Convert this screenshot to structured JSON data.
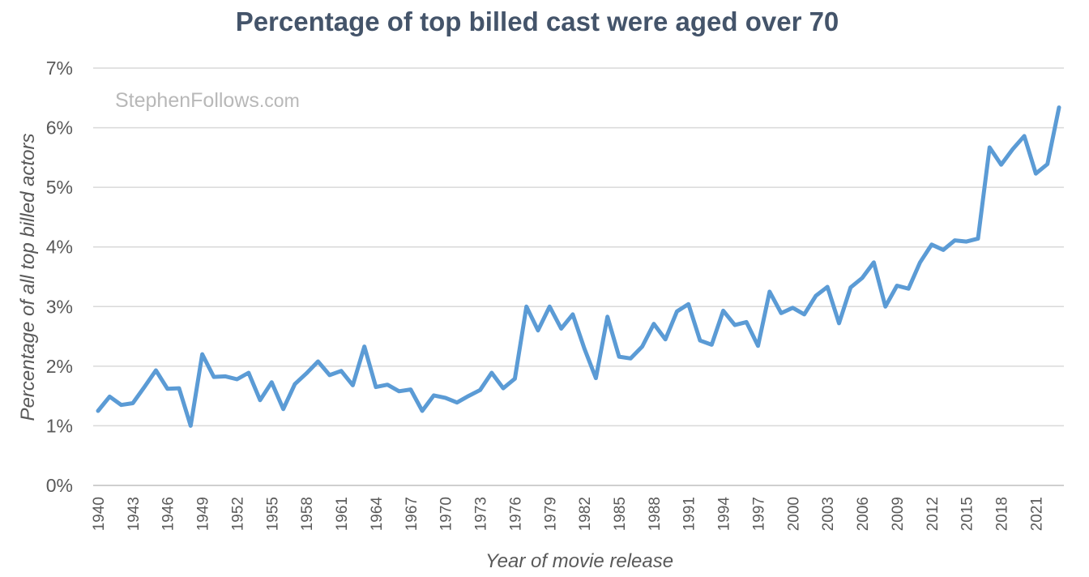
{
  "chart_data": {
    "type": "line",
    "title": "Percentage of top billed cast were aged over 70",
    "xlabel": "Year of movie release",
    "ylabel": "Percentage of all top billed actors",
    "watermark": "StephenFollows",
    "watermark_suffix": ".com",
    "ylim": [
      0,
      7
    ],
    "y_ticks": [
      "0%",
      "1%",
      "2%",
      "3%",
      "4%",
      "5%",
      "6%",
      "7%"
    ],
    "x_tick_labels": [
      "1940",
      "1943",
      "1946",
      "1949",
      "1952",
      "1955",
      "1958",
      "1961",
      "1964",
      "1967",
      "1970",
      "1973",
      "1976",
      "1979",
      "1982",
      "1985",
      "1988",
      "1991",
      "1994",
      "1997",
      "2000",
      "2003",
      "2006",
      "2009",
      "2012",
      "2015",
      "2018",
      "2021"
    ],
    "grid": "horizontal",
    "line_color": "#5b9bd5",
    "series": [
      {
        "x": [
          1940,
          1941,
          1942,
          1943,
          1944,
          1945,
          1946,
          1947,
          1948,
          1949,
          1950,
          1951,
          1952,
          1953,
          1954,
          1955,
          1956,
          1957,
          1958,
          1959,
          1960,
          1961,
          1962,
          1963,
          1964,
          1965,
          1966,
          1967,
          1968,
          1969,
          1970,
          1971,
          1972,
          1973,
          1974,
          1975,
          1976,
          1977,
          1978,
          1979,
          1980,
          1981,
          1982,
          1983,
          1984,
          1985,
          1986,
          1987,
          1988,
          1989,
          1990,
          1991,
          1992,
          1993,
          1994,
          1995,
          1996,
          1997,
          1998,
          1999,
          2000,
          2001,
          2002,
          2003,
          2004,
          2005,
          2006,
          2007,
          2008,
          2009,
          2010,
          2011,
          2012,
          2013,
          2014,
          2015,
          2016,
          2017,
          2018,
          2019,
          2020,
          2021,
          2022,
          2023
        ],
        "values": [
          1.25,
          1.49,
          1.35,
          1.38,
          1.65,
          1.93,
          1.62,
          1.63,
          1.0,
          2.2,
          1.82,
          1.83,
          1.78,
          1.89,
          1.43,
          1.73,
          1.28,
          1.7,
          1.88,
          2.08,
          1.85,
          1.92,
          1.68,
          2.33,
          1.65,
          1.69,
          1.58,
          1.61,
          1.25,
          1.51,
          1.47,
          1.39,
          1.5,
          1.6,
          1.89,
          1.63,
          1.79,
          3.0,
          2.6,
          3.0,
          2.63,
          2.87,
          2.3,
          1.8,
          2.83,
          2.16,
          2.13,
          2.33,
          2.71,
          2.45,
          2.92,
          3.04,
          2.43,
          2.36,
          2.93,
          2.69,
          2.74,
          2.34,
          3.25,
          2.89,
          2.98,
          2.87,
          3.18,
          3.33,
          2.72,
          3.32,
          3.48,
          3.74,
          3.0,
          3.35,
          3.3,
          3.74,
          4.04,
          3.95,
          4.11,
          4.09,
          4.14,
          5.67,
          5.38,
          5.64,
          5.86,
          5.23,
          5.39,
          6.34
        ]
      }
    ]
  }
}
